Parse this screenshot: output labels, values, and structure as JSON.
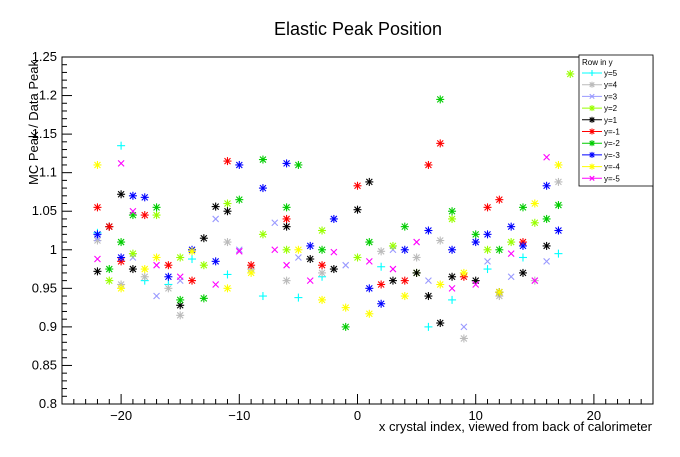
{
  "chart_data": {
    "type": "scatter",
    "title": "Elastic Peak Position",
    "xlabel": "x crystal index, viewed from back of calorimeter",
    "ylabel": "MC Peak / Data Peak",
    "xlim": [
      -25,
      25
    ],
    "ylim": [
      0.8,
      1.25
    ],
    "x_ticks": [
      -20,
      -10,
      0,
      10,
      20
    ],
    "x_tick_labels": [
      "−20",
      "−10",
      "0",
      "10",
      "20"
    ],
    "y_ticks": [
      0.8,
      0.85,
      0.9,
      0.95,
      1.0,
      1.05,
      1.1,
      1.15,
      1.2,
      1.25
    ],
    "y_tick_labels": [
      "0.8",
      "0.85",
      "0.9",
      "0.95",
      "1",
      "1.05",
      "1.1",
      "1.15",
      "1.2",
      "1.25"
    ],
    "legend": {
      "title": "Row in y",
      "placement": "top-right"
    },
    "series": [
      {
        "name": "y=5",
        "color": "#00ffff",
        "marker": "+",
        "points": [
          [
            -22,
            1.022
          ],
          [
            -20,
            1.135
          ],
          [
            -18,
            0.96
          ],
          [
            -16,
            0.955
          ],
          [
            -14,
            0.988
          ],
          [
            -11,
            0.968
          ],
          [
            -8,
            0.94
          ],
          [
            -5,
            0.938
          ],
          [
            -3,
            0.965
          ],
          [
            2,
            0.978
          ],
          [
            6,
            0.9
          ],
          [
            8,
            0.935
          ],
          [
            11,
            0.975
          ],
          [
            14,
            0.99
          ],
          [
            17,
            0.995
          ]
        ]
      },
      {
        "name": "y=4",
        "color": "#bbbbbb",
        "marker": "*",
        "points": [
          [
            -22,
            1.012
          ],
          [
            -20,
            0.955
          ],
          [
            -18,
            0.965
          ],
          [
            -16,
            0.95
          ],
          [
            -15,
            0.915
          ],
          [
            -11,
            1.01
          ],
          [
            -9,
            0.975
          ],
          [
            -6,
            0.96
          ],
          [
            -3,
            0.97
          ],
          [
            2,
            0.998
          ],
          [
            5,
            0.99
          ],
          [
            7,
            1.012
          ],
          [
            9,
            0.885
          ],
          [
            12,
            0.94
          ],
          [
            15,
            0.96
          ],
          [
            17,
            1.088
          ]
        ]
      },
      {
        "name": "y=3",
        "color": "#9999ff",
        "marker": "x",
        "points": [
          [
            -22,
            1.015
          ],
          [
            -19,
            0.99
          ],
          [
            -17,
            0.94
          ],
          [
            -15,
            0.96
          ],
          [
            -12,
            1.04
          ],
          [
            -10,
            1.0
          ],
          [
            -7,
            1.035
          ],
          [
            -5,
            0.99
          ],
          [
            -1,
            0.98
          ],
          [
            3,
            1.0
          ],
          [
            6,
            0.96
          ],
          [
            9,
            0.9
          ],
          [
            11,
            0.985
          ],
          [
            13,
            0.965
          ],
          [
            16,
            0.985
          ]
        ]
      },
      {
        "name": "y=2",
        "color": "#99ff00",
        "marker": "*",
        "points": [
          [
            -21,
            0.96
          ],
          [
            -19,
            0.995
          ],
          [
            -17,
            1.045
          ],
          [
            -15,
            0.99
          ],
          [
            -13,
            0.98
          ],
          [
            -11,
            1.06
          ],
          [
            -8,
            1.02
          ],
          [
            -6,
            1.0
          ],
          [
            -3,
            1.025
          ],
          [
            0,
            0.99
          ],
          [
            3,
            1.005
          ],
          [
            5,
            0.97
          ],
          [
            8,
            1.04
          ],
          [
            11,
            1.0
          ],
          [
            13,
            1.01
          ],
          [
            15,
            1.035
          ],
          [
            18,
            1.228
          ]
        ]
      },
      {
        "name": "y=1",
        "color": "#000000",
        "marker": "*",
        "points": [
          [
            -22,
            0.972
          ],
          [
            -21,
            1.03
          ],
          [
            -20,
            1.072
          ],
          [
            -19,
            0.975
          ],
          [
            -15,
            0.928
          ],
          [
            -13,
            1.015
          ],
          [
            -12,
            1.056
          ],
          [
            -11,
            1.05
          ],
          [
            -6,
            1.03
          ],
          [
            -4,
            0.988
          ],
          [
            -2,
            0.975
          ],
          [
            0,
            1.052
          ],
          [
            1,
            1.088
          ],
          [
            3,
            0.96
          ],
          [
            5,
            0.97
          ],
          [
            6,
            0.94
          ],
          [
            7,
            0.905
          ],
          [
            8,
            0.965
          ],
          [
            10,
            0.96
          ],
          [
            12,
            0.945
          ],
          [
            14,
            0.97
          ],
          [
            16,
            1.005
          ]
        ]
      },
      {
        "name": "y=-1",
        "color": "#ff0000",
        "marker": "*",
        "points": [
          [
            -22,
            1.055
          ],
          [
            -21,
            1.03
          ],
          [
            -20,
            0.985
          ],
          [
            -18,
            1.045
          ],
          [
            -16,
            0.98
          ],
          [
            -14,
            0.96
          ],
          [
            -11,
            1.115
          ],
          [
            -9,
            0.98
          ],
          [
            -6,
            1.04
          ],
          [
            -3,
            0.98
          ],
          [
            0,
            1.083
          ],
          [
            2,
            0.955
          ],
          [
            4,
            0.96
          ],
          [
            6,
            1.11
          ],
          [
            7,
            1.138
          ],
          [
            9,
            0.965
          ],
          [
            11,
            1.055
          ],
          [
            12,
            1.065
          ],
          [
            14,
            1.01
          ]
        ]
      },
      {
        "name": "y=-2",
        "color": "#00cc00",
        "marker": "*",
        "points": [
          [
            -21,
            0.975
          ],
          [
            -20,
            1.01
          ],
          [
            -19,
            1.045
          ],
          [
            -17,
            1.055
          ],
          [
            -15,
            0.935
          ],
          [
            -13,
            0.937
          ],
          [
            -10,
            1.065
          ],
          [
            -8,
            1.117
          ],
          [
            -6,
            1.055
          ],
          [
            -5,
            1.11
          ],
          [
            -3,
            1.0
          ],
          [
            -1,
            0.9
          ],
          [
            1,
            1.01
          ],
          [
            4,
            1.03
          ],
          [
            7,
            1.195
          ],
          [
            8,
            1.05
          ],
          [
            10,
            1.02
          ],
          [
            12,
            1.0
          ],
          [
            14,
            1.055
          ],
          [
            16,
            1.04
          ],
          [
            17,
            1.058
          ]
        ]
      },
      {
        "name": "y=-3",
        "color": "#0000ff",
        "marker": "*",
        "points": [
          [
            -22,
            1.02
          ],
          [
            -20,
            0.99
          ],
          [
            -19,
            1.07
          ],
          [
            -18,
            1.068
          ],
          [
            -16,
            0.965
          ],
          [
            -14,
            1.0
          ],
          [
            -12,
            0.985
          ],
          [
            -10,
            1.11
          ],
          [
            -8,
            1.08
          ],
          [
            -6,
            1.112
          ],
          [
            -4,
            1.005
          ],
          [
            -2,
            1.04
          ],
          [
            1,
            0.95
          ],
          [
            2,
            0.93
          ],
          [
            4,
            1.0
          ],
          [
            6,
            1.025
          ],
          [
            8,
            1.0
          ],
          [
            10,
            1.01
          ],
          [
            11,
            1.02
          ],
          [
            13,
            1.03
          ],
          [
            14,
            1.005
          ],
          [
            16,
            1.083
          ],
          [
            17,
            1.025
          ]
        ]
      },
      {
        "name": "y=-4",
        "color": "#ffff00",
        "marker": "*",
        "points": [
          [
            -22,
            1.11
          ],
          [
            -20,
            0.95
          ],
          [
            -18,
            0.975
          ],
          [
            -17,
            0.99
          ],
          [
            -14,
            0.998
          ],
          [
            -11,
            0.95
          ],
          [
            -9,
            0.97
          ],
          [
            -5,
            1.0
          ],
          [
            -3,
            0.935
          ],
          [
            -1,
            0.925
          ],
          [
            1,
            0.917
          ],
          [
            4,
            0.94
          ],
          [
            7,
            0.955
          ],
          [
            9,
            0.97
          ],
          [
            12,
            0.945
          ],
          [
            15,
            1.06
          ],
          [
            17,
            1.11
          ]
        ]
      },
      {
        "name": "y=-5",
        "color": "#ff00ff",
        "marker": "x",
        "points": [
          [
            -22,
            0.988
          ],
          [
            -20,
            1.112
          ],
          [
            -19,
            1.05
          ],
          [
            -17,
            0.98
          ],
          [
            -15,
            0.965
          ],
          [
            -12,
            0.955
          ],
          [
            -10,
            0.998
          ],
          [
            -7,
            1.0
          ],
          [
            -6,
            0.98
          ],
          [
            -4,
            0.96
          ],
          [
            -2,
            0.997
          ],
          [
            1,
            0.985
          ],
          [
            3,
            0.975
          ],
          [
            5,
            1.01
          ],
          [
            8,
            0.95
          ],
          [
            10,
            0.955
          ],
          [
            13,
            0.995
          ],
          [
            15,
            0.96
          ],
          [
            16,
            1.12
          ]
        ]
      }
    ]
  }
}
